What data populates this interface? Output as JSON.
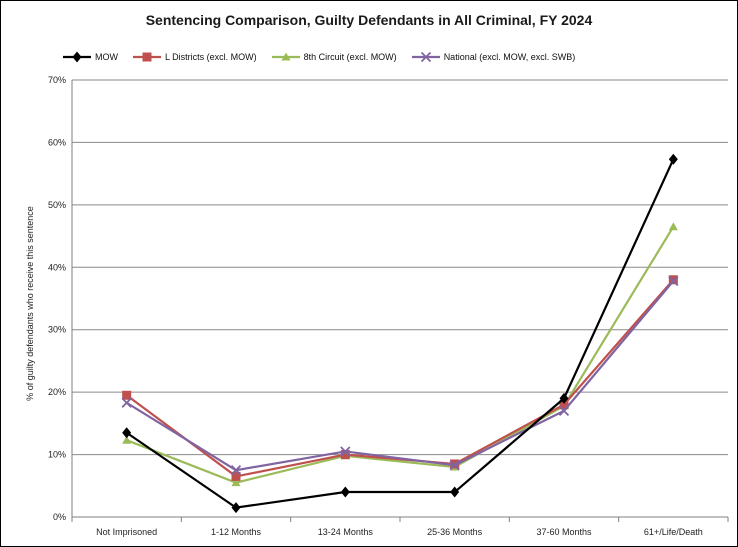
{
  "chart_data": {
    "type": "line",
    "title": "Sentencing Comparison, Guilty Defendants in All Criminal, FY 2024",
    "xlabel": "",
    "ylabel": "% of guilty defendants who receive this sentence",
    "ylim": [
      0,
      70
    ],
    "yticks": [
      "0%",
      "10%",
      "20%",
      "30%",
      "40%",
      "50%",
      "60%",
      "70%"
    ],
    "grid": "horizontal",
    "legend_position": "top",
    "categories": [
      "Not Imprisoned",
      "1-12 Months",
      "13-24 Months",
      "25-36 Months",
      "37-60 Months",
      "61+/Life/Death"
    ],
    "series": [
      {
        "name": "MOW",
        "color": "#000000",
        "marker": "diamond",
        "values": [
          13.5,
          1.5,
          4.0,
          4.0,
          19.0,
          57.3
        ]
      },
      {
        "name": "L Districts (excl. MOW)",
        "color": "#c0504d",
        "marker": "square",
        "values": [
          19.5,
          6.5,
          10.0,
          8.5,
          18.0,
          38.0
        ]
      },
      {
        "name": "8th Circuit (excl. MOW)",
        "color": "#9bbb59",
        "marker": "triangle",
        "values": [
          12.3,
          5.5,
          9.8,
          8.0,
          17.8,
          46.5
        ]
      },
      {
        "name": "National (excl. MOW, excl. SWB)",
        "color": "#8064a2",
        "marker": "x",
        "values": [
          18.3,
          7.5,
          10.5,
          8.3,
          17.0,
          37.8
        ]
      }
    ]
  }
}
